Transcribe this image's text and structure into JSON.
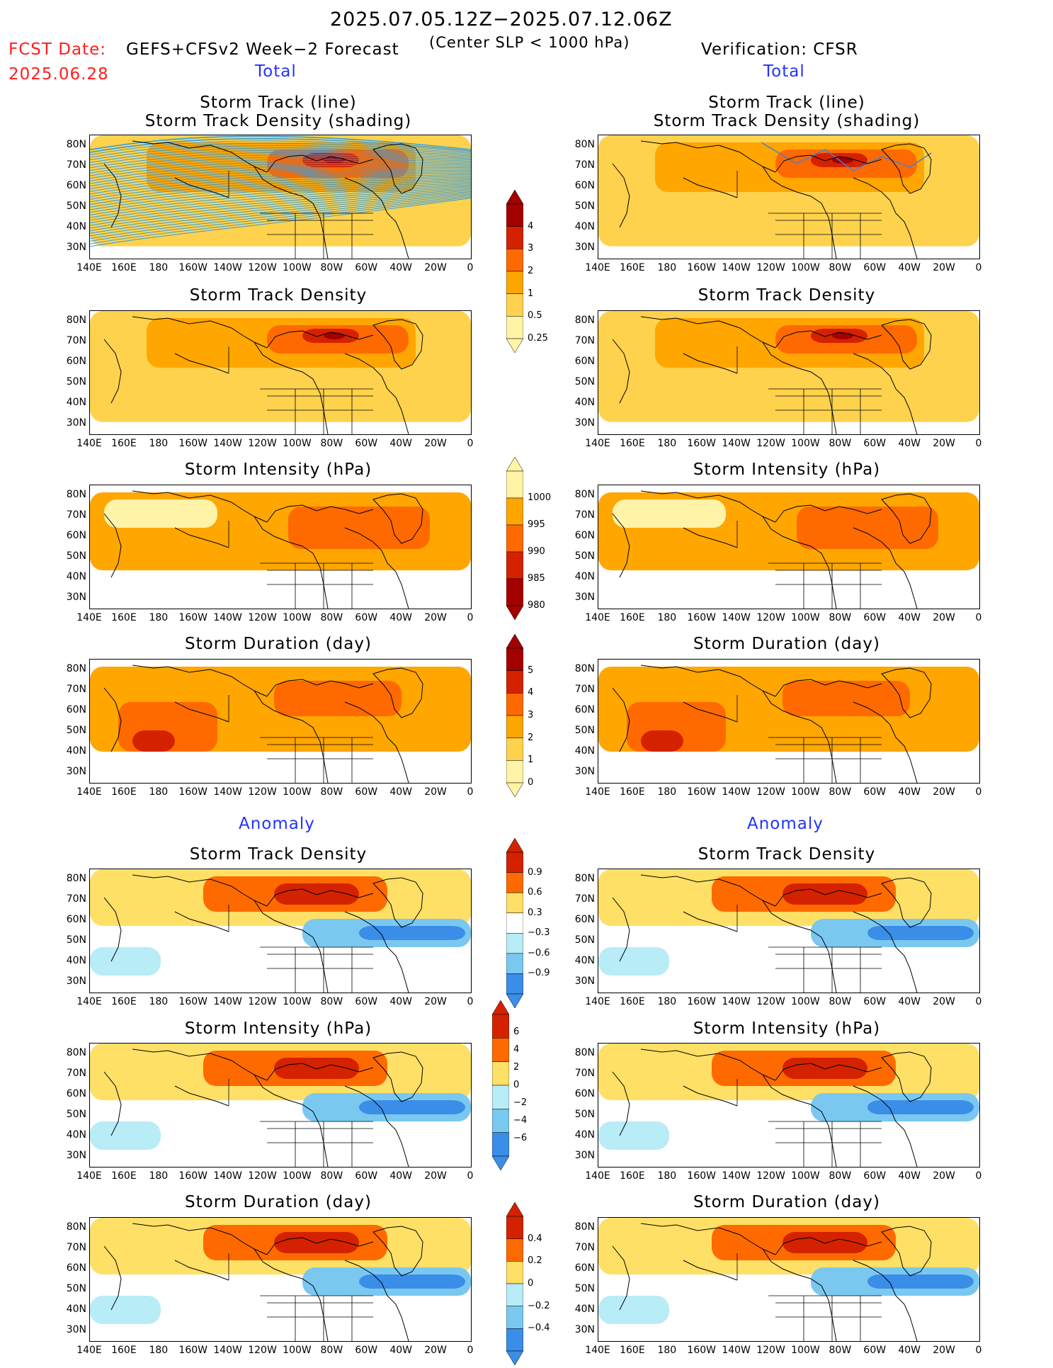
{
  "header": {
    "period": "2025.07.05.12Z−2025.07.12.06Z",
    "fcst_label": "FCST Date:",
    "fcst_date": "2025.06.28",
    "forecast_name": "GEFS+CFSv2 Week−2 Forecast",
    "criterion": "(Center SLP < 1000 hPa)",
    "verification": "Verification: CFSR",
    "total_left": "Total",
    "total_right": "Total",
    "anomaly_left": "Anomaly",
    "anomaly_right": "Anomaly"
  },
  "titles": {
    "track_line": "Storm Track (line)",
    "track_density_shading": "Storm Track Density (shading)",
    "density": "Storm Track Density",
    "intensity": "Storm Intensity (hPa)",
    "duration": "Storm Duration (day)"
  },
  "axes": {
    "lat_ticks": [
      "80N",
      "70N",
      "60N",
      "50N",
      "40N",
      "30N"
    ],
    "lon_ticks": [
      "140E",
      "160E",
      "180",
      "160W",
      "140W",
      "120W",
      "100W",
      "80W",
      "60W",
      "40W",
      "20W",
      "0"
    ]
  },
  "colorbars": {
    "density_total": [
      "4",
      "3",
      "2",
      "1",
      "0.5",
      "0.25"
    ],
    "intensity_total": [
      "1000",
      "995",
      "990",
      "985",
      "980"
    ],
    "duration_total": [
      "5",
      "4",
      "3",
      "2",
      "1",
      "0"
    ],
    "density_anom": [
      "0.9",
      "0.6",
      "0.3",
      "−0.3",
      "−0.6",
      "−0.9"
    ],
    "intensity_anom": [
      "6",
      "4",
      "2",
      "0",
      "−2",
      "−4",
      "−6"
    ],
    "duration_anom": [
      "0.4",
      "0.2",
      "0",
      "−0.2",
      "−0.4"
    ]
  },
  "colors": {
    "density_total": [
      "#a30000",
      "#d42200",
      "#ff6a00",
      "#ffa600",
      "#ffd24d",
      "#fff3a8"
    ],
    "intensity_total": [
      "#fff3a8",
      "#ffa600",
      "#ff6a00",
      "#d42200",
      "#a30000"
    ],
    "duration_total": [
      "#a30000",
      "#d42200",
      "#ff6a00",
      "#ffa600",
      "#ffd24d",
      "#fff3a8"
    ],
    "anom": [
      "#d42200",
      "#ff6a00",
      "#ffa600",
      "#ffe066",
      "#ffffff",
      "#b8ecf7",
      "#7ac8f0",
      "#3a8ee8",
      "#1f5fd8"
    ],
    "track_line": "#2e9be6",
    "track_line_obs": "#4a7fd6"
  },
  "chart_data": [
    {
      "type": "heatmap",
      "panel": "forecast-total-track",
      "title": "Storm Track (line) Storm Track Density (shading)",
      "x_ticks": [
        "140E",
        "160E",
        "180",
        "160W",
        "140W",
        "120W",
        "100W",
        "80W",
        "60W",
        "40W",
        "20W",
        "0"
      ],
      "y_ticks": [
        "80N",
        "70N",
        "60N",
        "50N",
        "40N",
        "30N"
      ],
      "colorbar": [
        "0.25",
        "0.5",
        "1",
        "2",
        "3",
        "4"
      ]
    },
    {
      "type": "heatmap",
      "panel": "verification-total-track",
      "title": "Storm Track (line) Storm Track Density (shading)",
      "colorbar": [
        "0.25",
        "0.5",
        "1",
        "2",
        "3",
        "4"
      ]
    },
    {
      "type": "heatmap",
      "panel": "forecast-total-density",
      "title": "Storm Track Density"
    },
    {
      "type": "heatmap",
      "panel": "verification-total-density",
      "title": "Storm Track Density"
    },
    {
      "type": "heatmap",
      "panel": "forecast-total-intensity",
      "title": "Storm Intensity (hPa)",
      "colorbar": [
        "980",
        "985",
        "990",
        "995",
        "1000"
      ]
    },
    {
      "type": "heatmap",
      "panel": "verification-total-intensity",
      "title": "Storm Intensity (hPa)"
    },
    {
      "type": "heatmap",
      "panel": "forecast-total-duration",
      "title": "Storm Duration (day)",
      "colorbar": [
        "0",
        "1",
        "2",
        "3",
        "4",
        "5"
      ]
    },
    {
      "type": "heatmap",
      "panel": "verification-total-duration",
      "title": "Storm Duration (day)"
    },
    {
      "type": "heatmap",
      "panel": "forecast-anom-density",
      "title": "Storm Track Density",
      "colorbar": [
        "−0.9",
        "−0.6",
        "−0.3",
        "0.3",
        "0.6",
        "0.9"
      ]
    },
    {
      "type": "heatmap",
      "panel": "verification-anom-density",
      "title": "Storm Track Density"
    },
    {
      "type": "heatmap",
      "panel": "forecast-anom-intensity",
      "title": "Storm Intensity (hPa)",
      "colorbar": [
        "−6",
        "−4",
        "−2",
        "0",
        "2",
        "4",
        "6"
      ]
    },
    {
      "type": "heatmap",
      "panel": "verification-anom-intensity",
      "title": "Storm Intensity (hPa)"
    },
    {
      "type": "heatmap",
      "panel": "forecast-anom-duration",
      "title": "Storm Duration (day)",
      "colorbar": [
        "−0.4",
        "−0.2",
        "0",
        "0.2",
        "0.4"
      ]
    },
    {
      "type": "heatmap",
      "panel": "verification-anom-duration",
      "title": "Storm Duration (day)"
    }
  ]
}
